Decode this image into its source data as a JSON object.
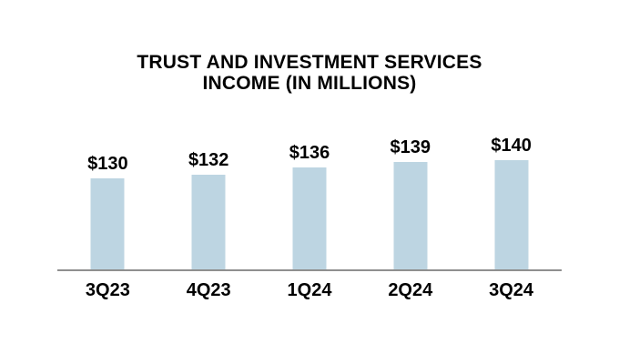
{
  "chart_data": {
    "type": "bar",
    "title": "TRUST AND INVESTMENT SERVICES INCOME (IN MILLIONS)",
    "title_lines": [
      "TRUST AND INVESTMENT SERVICES",
      "INCOME (IN MILLIONS)"
    ],
    "categories": [
      "3Q23",
      "4Q23",
      "1Q24",
      "2Q24",
      "3Q24"
    ],
    "values": [
      130,
      132,
      136,
      139,
      140
    ],
    "data_labels": [
      "$130",
      "$132",
      "$136",
      "$139",
      "$140"
    ],
    "xlabel": "",
    "ylabel": "",
    "ylim": [
      80,
      150
    ],
    "grid": false,
    "legend": false,
    "y_axis_visible": false,
    "colors": {
      "bar": "#BDD5E2",
      "axis_line": "#8F8F8F",
      "text": "#000000",
      "background": "#FFFFFF"
    }
  }
}
